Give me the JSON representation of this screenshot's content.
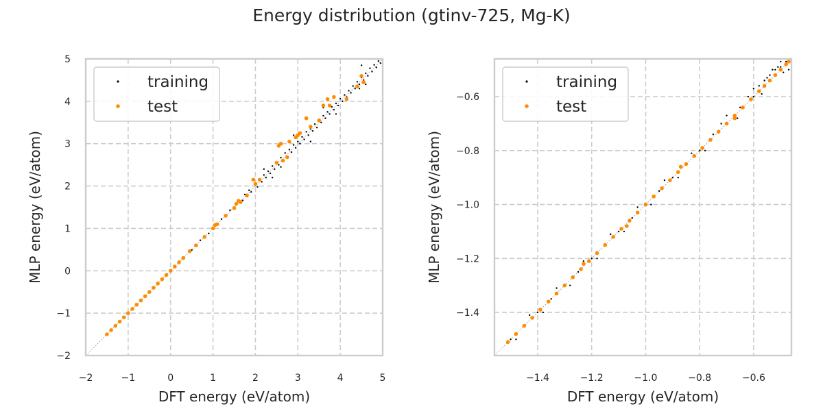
{
  "figure": {
    "title": "Energy distribution (gtinv-725, Mg-K)"
  },
  "colors": {
    "training": "#000000",
    "test": "#ff8c00",
    "grid": "#cccccc",
    "spine": "#cccccc",
    "diagonal": "#999999"
  },
  "chart_data": [
    {
      "type": "scatter",
      "xlabel": "DFT energy (eV/atom)",
      "ylabel": "MLP energy (eV/atom)",
      "xlim": [
        -2,
        5
      ],
      "ylim": [
        -2,
        5
      ],
      "xticks": [
        -2,
        -1,
        0,
        1,
        2,
        3,
        4,
        5
      ],
      "yticks": [
        -2,
        -1,
        0,
        1,
        2,
        3,
        4,
        5
      ],
      "xtick_labels": [
        "−2",
        "−1",
        "0",
        "1",
        "2",
        "3",
        "4",
        "5"
      ],
      "ytick_labels": [
        "−2",
        "−1",
        "0",
        "1",
        "2",
        "3",
        "4",
        "5"
      ],
      "grid": true,
      "legend_position": "top-left",
      "reference_line": "y = x",
      "series": [
        {
          "name": "training",
          "color": "#000000",
          "marker_size": 1.2,
          "points": [
            [
              -1.5,
              -1.5
            ],
            [
              -1.3,
              -1.3
            ],
            [
              -1.1,
              -1.1
            ],
            [
              -0.9,
              -0.9
            ],
            [
              -0.7,
              -0.7
            ],
            [
              -0.5,
              -0.5
            ],
            [
              -0.3,
              -0.3
            ],
            [
              -0.1,
              -0.1
            ],
            [
              0.1,
              0.1
            ],
            [
              0.3,
              0.31
            ],
            [
              0.5,
              0.49
            ],
            [
              0.7,
              0.72
            ],
            [
              0.9,
              0.88
            ],
            [
              1.0,
              1.02
            ],
            [
              1.1,
              1.08
            ],
            [
              1.2,
              1.22
            ],
            [
              1.3,
              1.28
            ],
            [
              1.4,
              1.43
            ],
            [
              1.5,
              1.47
            ],
            [
              1.6,
              1.63
            ],
            [
              1.7,
              1.66
            ],
            [
              1.75,
              1.8
            ],
            [
              1.8,
              1.75
            ],
            [
              1.85,
              1.9
            ],
            [
              1.9,
              1.86
            ],
            [
              2.0,
              2.05
            ],
            [
              2.05,
              1.98
            ],
            [
              2.1,
              2.15
            ],
            [
              2.15,
              2.1
            ],
            [
              2.2,
              2.26
            ],
            [
              2.25,
              2.2
            ],
            [
              2.3,
              2.35
            ],
            [
              2.35,
              2.3
            ],
            [
              2.4,
              2.47
            ],
            [
              2.45,
              2.4
            ],
            [
              2.5,
              2.56
            ],
            [
              2.55,
              2.5
            ],
            [
              2.6,
              2.67
            ],
            [
              2.65,
              2.6
            ],
            [
              2.7,
              2.78
            ],
            [
              2.75,
              2.7
            ],
            [
              2.8,
              2.86
            ],
            [
              2.85,
              2.8
            ],
            [
              2.9,
              2.97
            ],
            [
              2.95,
              2.9
            ],
            [
              3.0,
              3.05
            ],
            [
              3.05,
              3.0
            ],
            [
              3.1,
              3.16
            ],
            [
              3.15,
              3.1
            ],
            [
              3.2,
              3.28
            ],
            [
              3.25,
              3.2
            ],
            [
              3.3,
              3.35
            ],
            [
              3.35,
              3.3
            ],
            [
              3.4,
              3.46
            ],
            [
              3.45,
              3.38
            ],
            [
              3.5,
              3.55
            ],
            [
              3.55,
              3.5
            ],
            [
              3.6,
              3.66
            ],
            [
              3.65,
              3.6
            ],
            [
              3.7,
              3.75
            ],
            [
              3.75,
              3.7
            ],
            [
              3.8,
              3.87
            ],
            [
              3.85,
              3.8
            ],
            [
              3.9,
              3.95
            ],
            [
              3.95,
              3.9
            ],
            [
              4.0,
              4.06
            ],
            [
              4.05,
              4.0
            ],
            [
              4.1,
              4.15
            ],
            [
              4.15,
              4.1
            ],
            [
              4.2,
              4.25
            ],
            [
              4.25,
              4.2
            ],
            [
              4.3,
              4.36
            ],
            [
              4.35,
              4.3
            ],
            [
              4.4,
              4.46
            ],
            [
              4.45,
              4.4
            ],
            [
              4.5,
              4.56
            ],
            [
              4.55,
              4.5
            ],
            [
              4.6,
              4.66
            ],
            [
              4.65,
              4.6
            ],
            [
              4.7,
              4.78
            ],
            [
              4.75,
              4.7
            ],
            [
              4.8,
              4.86
            ],
            [
              4.85,
              4.8
            ],
            [
              4.9,
              4.95
            ],
            [
              4.95,
              4.9
            ],
            [
              2.9,
              3.2
            ],
            [
              2.6,
              2.45
            ],
            [
              3.3,
              3.05
            ],
            [
              4.5,
              4.85
            ],
            [
              4.6,
              4.4
            ],
            [
              3.6,
              3.85
            ],
            [
              3.9,
              3.7
            ],
            [
              2.2,
              2.4
            ],
            [
              2.4,
              2.2
            ],
            [
              4.45,
              4.3
            ]
          ]
        },
        {
          "name": "test",
          "color": "#ff8c00",
          "marker_size": 2.8,
          "points": [
            [
              -1.5,
              -1.5
            ],
            [
              -1.4,
              -1.4
            ],
            [
              -1.3,
              -1.3
            ],
            [
              -1.2,
              -1.2
            ],
            [
              -1.1,
              -1.1
            ],
            [
              -1.0,
              -1.0
            ],
            [
              -0.9,
              -0.9
            ],
            [
              -0.8,
              -0.8
            ],
            [
              -0.7,
              -0.7
            ],
            [
              -0.6,
              -0.6
            ],
            [
              -0.5,
              -0.5
            ],
            [
              -0.4,
              -0.4
            ],
            [
              -0.3,
              -0.3
            ],
            [
              -0.2,
              -0.2
            ],
            [
              -0.1,
              -0.1
            ],
            [
              0.0,
              0.0
            ],
            [
              0.1,
              0.1
            ],
            [
              0.2,
              0.2
            ],
            [
              0.3,
              0.3
            ],
            [
              0.45,
              0.46
            ],
            [
              0.6,
              0.6
            ],
            [
              0.8,
              0.8
            ],
            [
              1.0,
              1.0
            ],
            [
              1.05,
              1.08
            ],
            [
              1.1,
              1.1
            ],
            [
              1.3,
              1.3
            ],
            [
              1.5,
              1.48
            ],
            [
              1.55,
              1.58
            ],
            [
              1.6,
              1.65
            ],
            [
              1.65,
              1.62
            ],
            [
              1.8,
              1.78
            ],
            [
              1.95,
              2.15
            ],
            [
              2.0,
              2.05
            ],
            [
              2.1,
              2.15
            ],
            [
              2.5,
              2.55
            ],
            [
              2.55,
              2.95
            ],
            [
              2.6,
              3.0
            ],
            [
              2.65,
              2.6
            ],
            [
              2.75,
              2.68
            ],
            [
              2.8,
              3.05
            ],
            [
              2.95,
              3.15
            ],
            [
              3.0,
              3.2
            ],
            [
              3.05,
              3.25
            ],
            [
              3.2,
              3.6
            ],
            [
              3.3,
              3.4
            ],
            [
              3.5,
              3.55
            ],
            [
              3.6,
              3.9
            ],
            [
              3.7,
              4.05
            ],
            [
              3.75,
              3.9
            ],
            [
              3.85,
              4.1
            ],
            [
              4.15,
              4.05
            ],
            [
              4.4,
              4.35
            ],
            [
              4.5,
              4.6
            ],
            [
              4.55,
              4.45
            ]
          ]
        }
      ]
    },
    {
      "type": "scatter",
      "xlabel": "DFT energy (eV/atom)",
      "ylabel": "MLP energy (eV/atom)",
      "xlim": [
        -1.56,
        -0.46
      ],
      "ylim": [
        -1.56,
        -0.46
      ],
      "xticks": [
        -1.4,
        -1.2,
        -1.0,
        -0.8,
        -0.6
      ],
      "yticks": [
        -1.4,
        -1.2,
        -1.0,
        -0.8,
        -0.6
      ],
      "xtick_labels": [
        "−1.4",
        "−1.2",
        "−1.0",
        "−0.8",
        "−0.6"
      ],
      "ytick_labels": [
        "−1.4",
        "−1.2",
        "−1.0",
        "−0.8",
        "−0.6"
      ],
      "grid": true,
      "legend_position": "top-left",
      "reference_line": "y = x",
      "series": [
        {
          "name": "training",
          "color": "#000000",
          "marker_size": 1.2,
          "points": [
            [
              -1.5,
              -1.5
            ],
            [
              -1.45,
              -1.45
            ],
            [
              -1.4,
              -1.4
            ],
            [
              -1.35,
              -1.35
            ],
            [
              -1.3,
              -1.3
            ],
            [
              -1.25,
              -1.25
            ],
            [
              -1.2,
              -1.2
            ],
            [
              -1.15,
              -1.15
            ],
            [
              -1.1,
              -1.1
            ],
            [
              -1.05,
              -1.05
            ],
            [
              -1.0,
              -1.0
            ],
            [
              -0.95,
              -0.95
            ],
            [
              -0.9,
              -0.9
            ],
            [
              -0.85,
              -0.85
            ],
            [
              -0.8,
              -0.8
            ],
            [
              -0.75,
              -0.74
            ],
            [
              -0.7,
              -0.7
            ],
            [
              -0.65,
              -0.64
            ],
            [
              -0.6,
              -0.6
            ],
            [
              -0.58,
              -0.56
            ],
            [
              -0.56,
              -0.54
            ],
            [
              -0.54,
              -0.52
            ],
            [
              -0.52,
              -0.5
            ],
            [
              -0.5,
              -0.49
            ],
            [
              -0.48,
              -0.47
            ],
            [
              -0.49,
              -0.51
            ],
            [
              -0.51,
              -0.49
            ],
            [
              -0.55,
              -0.53
            ],
            [
              -0.57,
              -0.59
            ],
            [
              -0.62,
              -0.6
            ],
            [
              -0.66,
              -0.68
            ],
            [
              -0.72,
              -0.7
            ],
            [
              -0.78,
              -0.8
            ],
            [
              -0.83,
              -0.81
            ],
            [
              -0.88,
              -0.9
            ],
            [
              -0.93,
              -0.91
            ],
            [
              -0.98,
              -1.0
            ],
            [
              -1.03,
              -1.01
            ],
            [
              -1.08,
              -1.1
            ],
            [
              -1.13,
              -1.11
            ],
            [
              -1.18,
              -1.2
            ],
            [
              -1.23,
              -1.21
            ],
            [
              -1.28,
              -1.3
            ],
            [
              -1.33,
              -1.31
            ],
            [
              -1.38,
              -1.4
            ],
            [
              -1.43,
              -1.41
            ],
            [
              -1.48,
              -1.5
            ],
            [
              -0.5,
              -0.47
            ],
            [
              -0.47,
              -0.5
            ],
            [
              -0.53,
              -0.5
            ],
            [
              -0.6,
              -0.57
            ],
            [
              -0.7,
              -0.67
            ]
          ]
        },
        {
          "name": "test",
          "color": "#ff8c00",
          "marker_size": 2.8,
          "points": [
            [
              -1.51,
              -1.51
            ],
            [
              -1.48,
              -1.48
            ],
            [
              -1.45,
              -1.45
            ],
            [
              -1.42,
              -1.42
            ],
            [
              -1.39,
              -1.39
            ],
            [
              -1.36,
              -1.36
            ],
            [
              -1.33,
              -1.33
            ],
            [
              -1.3,
              -1.3
            ],
            [
              -1.27,
              -1.27
            ],
            [
              -1.24,
              -1.24
            ],
            [
              -1.21,
              -1.21
            ],
            [
              -1.18,
              -1.18
            ],
            [
              -1.15,
              -1.15
            ],
            [
              -1.12,
              -1.12
            ],
            [
              -1.09,
              -1.09
            ],
            [
              -1.06,
              -1.06
            ],
            [
              -1.03,
              -1.03
            ],
            [
              -1.0,
              -1.0
            ],
            [
              -0.97,
              -0.97
            ],
            [
              -0.94,
              -0.94
            ],
            [
              -0.91,
              -0.91
            ],
            [
              -0.88,
              -0.88
            ],
            [
              -0.85,
              -0.85
            ],
            [
              -0.82,
              -0.82
            ],
            [
              -0.79,
              -0.79
            ],
            [
              -0.76,
              -0.76
            ],
            [
              -0.73,
              -0.73
            ],
            [
              -0.7,
              -0.7
            ],
            [
              -0.67,
              -0.67
            ],
            [
              -0.64,
              -0.64
            ],
            [
              -0.61,
              -0.61
            ],
            [
              -0.58,
              -0.58
            ],
            [
              -0.56,
              -0.56
            ],
            [
              -0.54,
              -0.54
            ],
            [
              -0.52,
              -0.52
            ],
            [
              -0.5,
              -0.5
            ],
            [
              -0.48,
              -0.48
            ],
            [
              -0.47,
              -0.47
            ],
            [
              -1.23,
              -1.22
            ],
            [
              -1.07,
              -1.08
            ],
            [
              -0.87,
              -0.86
            ],
            [
              -0.67,
              -0.68
            ]
          ]
        }
      ]
    }
  ]
}
